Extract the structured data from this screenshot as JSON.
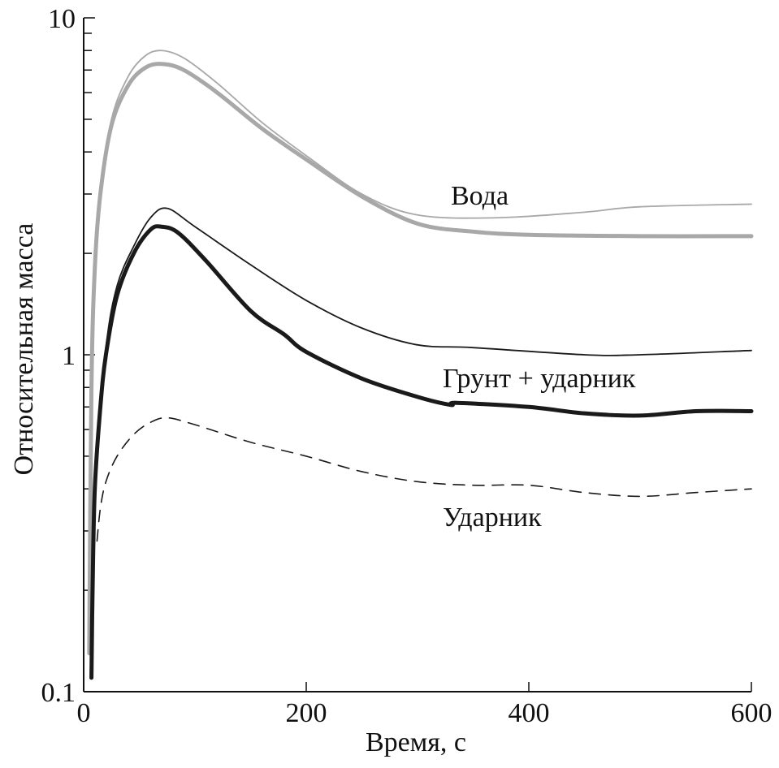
{
  "chart_data": {
    "type": "line",
    "title": "",
    "xlabel": "Время, с",
    "ylabel": "Относительная масса",
    "xlim": [
      0,
      600
    ],
    "ylim": [
      0.1,
      10
    ],
    "yscale": "log",
    "grid": false,
    "x_ticks": [
      0,
      200,
      400,
      600
    ],
    "x_tick_labels": [
      "0",
      "200",
      "400",
      "600"
    ],
    "y_ticks": [
      0.1,
      1,
      10
    ],
    "y_tick_labels": [
      "0.1",
      "1",
      "10"
    ],
    "annotations": [
      {
        "text": "Вода",
        "x": 330,
        "y": 3.0
      },
      {
        "text": "Грунт + ударник",
        "x": 325,
        "y": 0.83
      },
      {
        "text": "Ударник",
        "x": 325,
        "y": 0.33
      }
    ],
    "series": [
      {
        "name": "Вода (тонкая)",
        "color": "#a8a8a8",
        "style": "thin",
        "x": [
          5,
          7,
          10,
          15,
          25,
          40,
          55,
          70,
          90,
          120,
          160,
          200,
          250,
          300,
          370,
          450,
          500,
          600
        ],
        "y": [
          0.13,
          0.8,
          1.8,
          3.0,
          5.0,
          6.7,
          7.7,
          8.0,
          7.6,
          6.4,
          4.9,
          3.9,
          3.0,
          2.6,
          2.55,
          2.65,
          2.75,
          2.8
        ]
      },
      {
        "name": "Вода (толстая)",
        "color": "#a8a8a8",
        "style": "thick",
        "x": [
          5,
          7,
          10,
          15,
          25,
          40,
          55,
          70,
          90,
          120,
          160,
          200,
          250,
          300,
          350,
          400,
          500,
          600
        ],
        "y": [
          0.13,
          0.8,
          1.8,
          3.0,
          4.8,
          6.3,
          7.1,
          7.3,
          7.0,
          6.0,
          4.7,
          3.8,
          2.95,
          2.45,
          2.32,
          2.27,
          2.25,
          2.25
        ]
      },
      {
        "name": "Грунт + ударник (тонкая)",
        "color": "#1a1a1a",
        "style": "thin",
        "x": [
          10,
          20,
          30,
          45,
          60,
          75,
          100,
          150,
          200,
          250,
          300,
          350,
          450,
          500,
          600
        ],
        "y": [
          0.45,
          1.05,
          1.6,
          2.1,
          2.55,
          2.72,
          2.4,
          1.85,
          1.45,
          1.2,
          1.07,
          1.05,
          1.0,
          1.0,
          1.03
        ]
      },
      {
        "name": "Грунт + ударник (толстая)",
        "color": "#1a1a1a",
        "style": "thick",
        "x": [
          7,
          8,
          10,
          15,
          20,
          30,
          45,
          60,
          70,
          85,
          110,
          150,
          180,
          200,
          250,
          300,
          330,
          335,
          400,
          450,
          500,
          550,
          600
        ],
        "y": [
          0.11,
          0.2,
          0.4,
          0.7,
          1.0,
          1.5,
          2.0,
          2.35,
          2.4,
          2.3,
          1.9,
          1.35,
          1.15,
          1.02,
          0.85,
          0.75,
          0.71,
          0.72,
          0.7,
          0.67,
          0.66,
          0.68,
          0.68
        ]
      },
      {
        "name": "Ударник",
        "color": "#1a1a1a",
        "style": "dashed",
        "x": [
          12,
          15,
          20,
          30,
          45,
          60,
          75,
          100,
          150,
          200,
          250,
          300,
          350,
          400,
          450,
          500,
          550,
          600
        ],
        "y": [
          0.28,
          0.35,
          0.42,
          0.5,
          0.58,
          0.63,
          0.65,
          0.62,
          0.55,
          0.5,
          0.45,
          0.42,
          0.41,
          0.41,
          0.39,
          0.38,
          0.39,
          0.4
        ]
      }
    ]
  }
}
